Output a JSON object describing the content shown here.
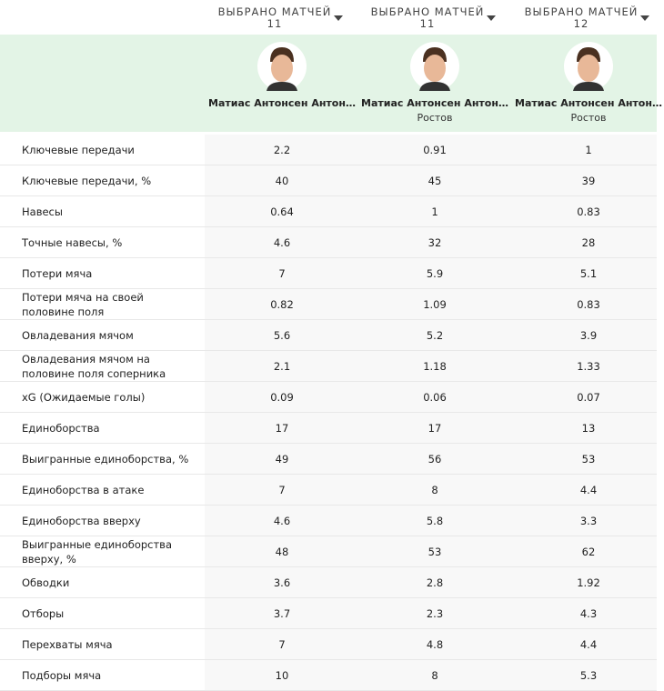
{
  "header": {
    "columns": [
      {
        "label": "ВЫБРАНО МАТЧЕЙ",
        "matches": 11,
        "player": "Матиас Антонсен Антон…",
        "club": null
      },
      {
        "label": "ВЫБРАНО МАТЧЕЙ",
        "matches": 11,
        "player": "Матиас Антонсен Антон…",
        "club": "Ростов"
      },
      {
        "label": "ВЫБРАНО МАТЧЕЙ",
        "matches": 12,
        "player": "Матиас Антонсен Антон…",
        "club": "Ростов"
      }
    ]
  },
  "table": {
    "rows": [
      [
        "Ключевые передачи",
        2.2,
        0.91,
        1
      ],
      [
        "Ключевые передачи, %",
        40,
        45,
        39
      ],
      [
        "Навесы",
        0.64,
        1,
        0.83
      ],
      [
        "Точные навесы, %",
        4.6,
        32,
        28
      ],
      [
        "Потери мяча",
        7,
        5.9,
        5.1
      ],
      [
        "Потери мяча на своей половине поля",
        0.82,
        1.09,
        0.83
      ],
      [
        "Овладевания мячом",
        5.6,
        5.2,
        3.9
      ],
      [
        "Овладевания мячом на половине поля соперника",
        2.1,
        1.18,
        1.33
      ],
      [
        "xG (Ожидаемые голы)",
        0.09,
        0.06,
        0.07
      ],
      [
        "Единоборства",
        17,
        17,
        13
      ],
      [
        "Выигранные единоборства, %",
        49,
        56,
        53
      ],
      [
        "Единоборства в атаке",
        7,
        8,
        4.4
      ],
      [
        "Единоборства вверху",
        4.6,
        5.8,
        3.3
      ],
      [
        "Выигранные единоборства вверху, %",
        48,
        53,
        62
      ],
      [
        "Обводки",
        3.6,
        2.8,
        1.92
      ],
      [
        "Отборы",
        3.7,
        2.3,
        4.3
      ],
      [
        "Перехваты мяча",
        7,
        4.8,
        4.4
      ],
      [
        "Подборы мяча",
        10,
        8,
        5.3
      ]
    ]
  }
}
